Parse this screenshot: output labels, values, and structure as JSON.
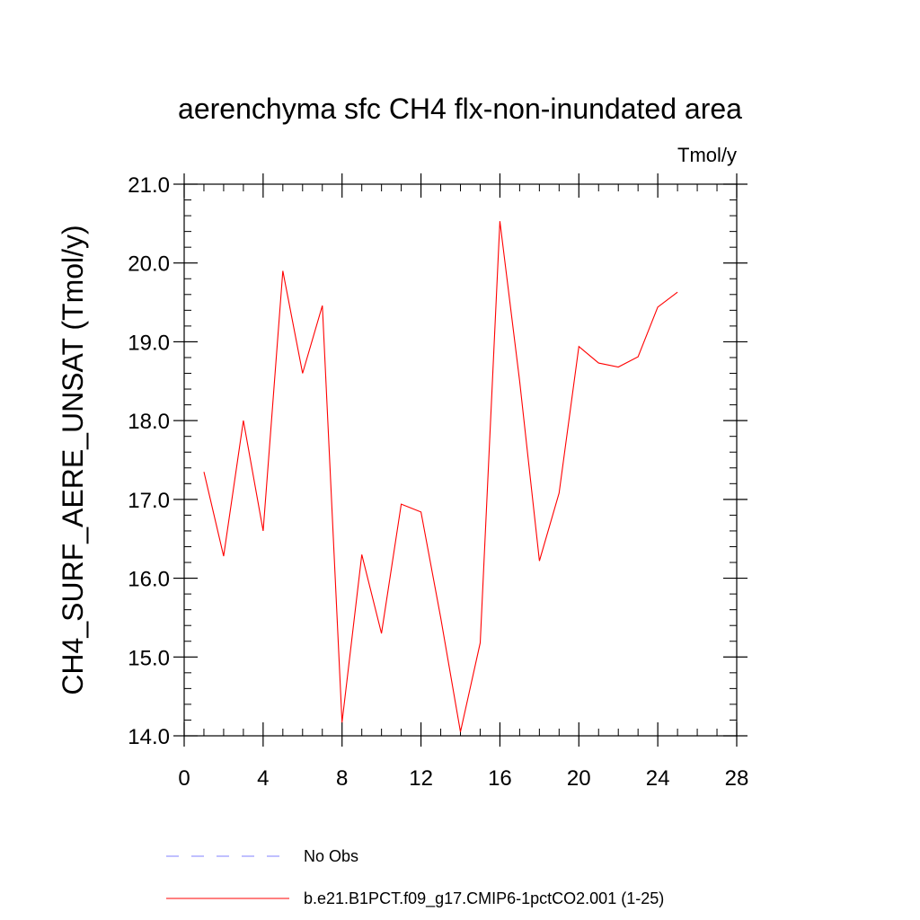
{
  "chart_data": {
    "type": "line",
    "title": "aerenchyma sfc CH4 flx-non-inundated area",
    "units_label": "Tmol/y",
    "ylabel": "CH4_SURF_AERE_UNSAT  (Tmol/y)",
    "xlabel": "",
    "xlim": [
      0,
      28
    ],
    "ylim": [
      14.0,
      21.0
    ],
    "x_ticks": [
      0,
      4,
      8,
      12,
      16,
      20,
      24,
      28
    ],
    "y_ticks": [
      14.0,
      15.0,
      16.0,
      17.0,
      18.0,
      19.0,
      20.0,
      21.0
    ],
    "x_tick_labels": [
      "0",
      "4",
      "8",
      "12",
      "16",
      "20",
      "24",
      "28"
    ],
    "y_tick_labels": [
      "14.0",
      "15.0",
      "16.0",
      "17.0",
      "18.0",
      "19.0",
      "20.0",
      "21.0"
    ],
    "grid": false,
    "legend_position": "bottom",
    "series": [
      {
        "name": "No Obs",
        "color": "#8080ff",
        "dash": "dashed",
        "x": [],
        "values": []
      },
      {
        "name": "b.e21.B1PCT.f09_g17.CMIP6-1pctCO2.001 (1-25)",
        "color": "#ff0000",
        "dash": "solid",
        "x": [
          1,
          2,
          3,
          4,
          5,
          6,
          7,
          8,
          9,
          10,
          11,
          12,
          13,
          14,
          15,
          16,
          17,
          18,
          19,
          20,
          21,
          22,
          23,
          24,
          25
        ],
        "values": [
          17.35,
          16.28,
          18.0,
          16.6,
          19.9,
          18.6,
          19.46,
          14.17,
          16.3,
          15.3,
          16.94,
          16.84,
          15.5,
          14.05,
          15.18,
          20.53,
          18.5,
          16.22,
          17.08,
          18.94,
          18.73,
          18.68,
          18.81,
          19.44,
          19.63
        ]
      }
    ]
  }
}
